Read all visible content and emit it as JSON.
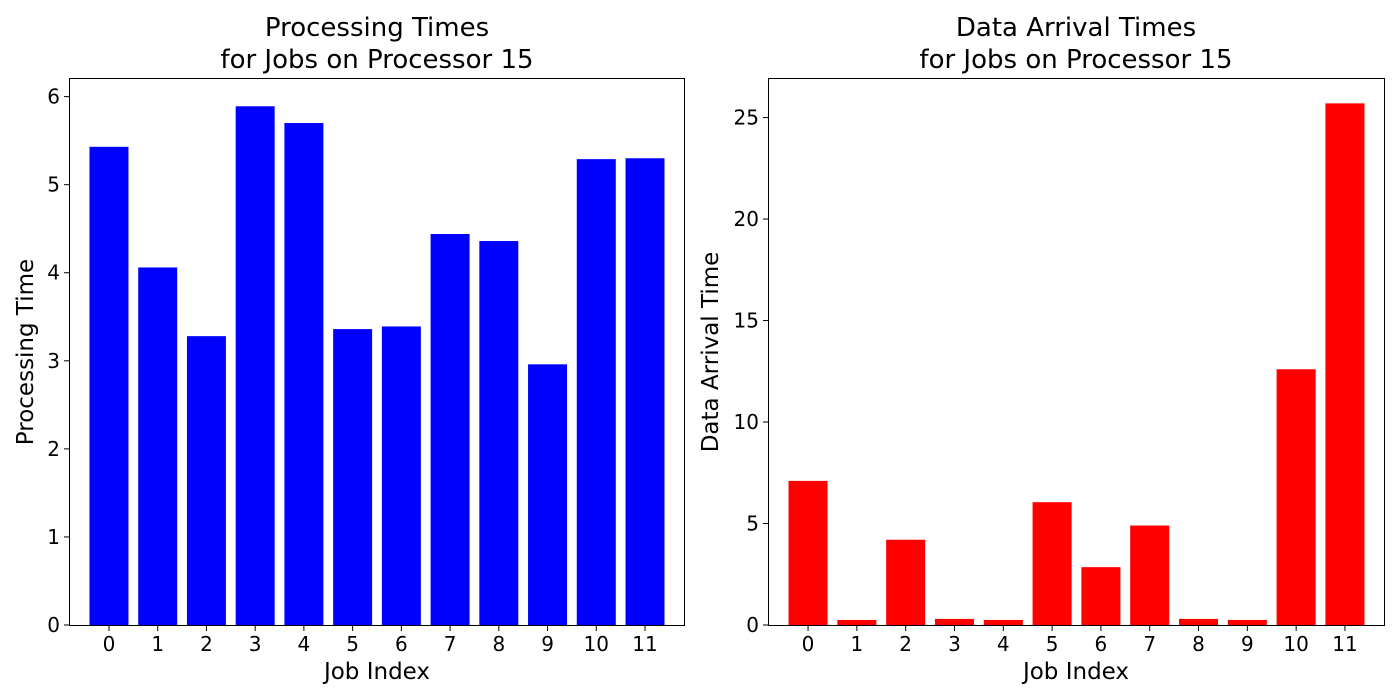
{
  "chart_data": [
    {
      "type": "bar",
      "title_line1": "Processing Times",
      "title_line2": "for Jobs on Processor 15",
      "xlabel": "Job Index",
      "ylabel": "Processing Time",
      "categories": [
        "0",
        "1",
        "2",
        "3",
        "4",
        "5",
        "6",
        "7",
        "8",
        "9",
        "10",
        "11"
      ],
      "values": [
        5.43,
        4.06,
        3.28,
        5.89,
        5.7,
        3.36,
        3.39,
        4.44,
        4.36,
        2.96,
        5.29,
        5.3
      ],
      "ylim": [
        0,
        6.2
      ],
      "yticks": [
        0,
        1,
        2,
        3,
        4,
        5,
        6
      ],
      "color": "#0000ff",
      "grid": false
    },
    {
      "type": "bar",
      "title_line1": "Data Arrival Times",
      "title_line2": "for Jobs on Processor 15",
      "xlabel": "Job Index",
      "ylabel": "Data Arrival Time",
      "categories": [
        "0",
        "1",
        "2",
        "3",
        "4",
        "5",
        "6",
        "7",
        "8",
        "9",
        "10",
        "11"
      ],
      "values": [
        7.1,
        0.25,
        4.2,
        0.3,
        0.25,
        6.05,
        2.85,
        4.9,
        0.3,
        0.25,
        12.6,
        25.7
      ],
      "ylim": [
        0,
        26.9
      ],
      "yticks": [
        0,
        5,
        10,
        15,
        20,
        25
      ],
      "color": "#ff0000",
      "grid": false
    }
  ]
}
